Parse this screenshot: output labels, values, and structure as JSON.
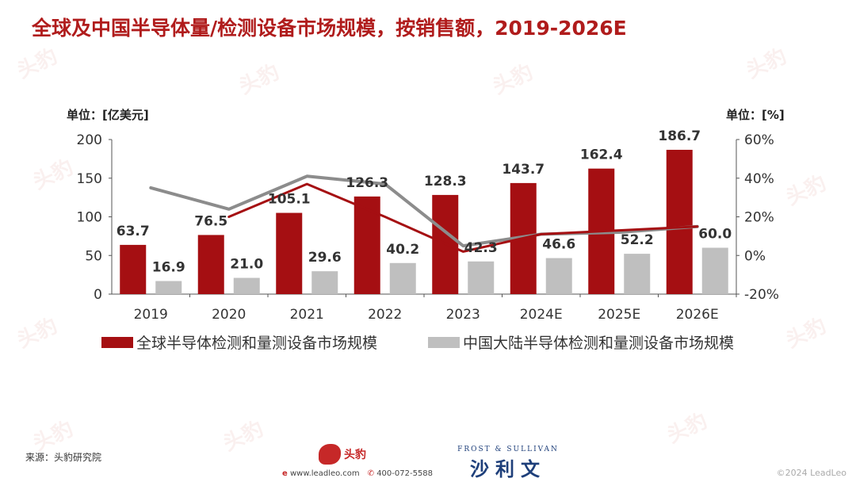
{
  "title": "全球及中国半导体量/检测设备市场规模，按销售额，2019-2026E",
  "units": {
    "left": "单位：[亿美元]",
    "right": "单位：[%]"
  },
  "legend": {
    "global": "全球半导体检测和量测设备市场规模",
    "china": "中国大陆半导体检测和量测设备市场规模"
  },
  "footer": {
    "source": "来源：头豹研究院",
    "leadleo_logo": "头豹",
    "website": "www.leadleo.com",
    "phone": "400-072-5588",
    "fs_small": "FROST & SULLIVAN",
    "fs_big": "沙利文",
    "copyright": "©2024 LeadLeo"
  },
  "watermark_text": "头豹",
  "colors": {
    "title": "#b01c1c",
    "global_bar": "#a50f12",
    "china_bar": "#bfbfbf",
    "global_line": "#a50f12",
    "china_line": "#8c8c8c"
  },
  "chart_data": {
    "type": "bar",
    "categories": [
      "2019",
      "2020",
      "2021",
      "2022",
      "2023",
      "2024E",
      "2025E",
      "2026E"
    ],
    "series": [
      {
        "name": "全球半导体检测和量测设备市场规模",
        "type": "bar",
        "axis": "left",
        "values": [
          63.7,
          76.5,
          105.1,
          126.3,
          128.3,
          143.7,
          162.4,
          186.7
        ]
      },
      {
        "name": "中国大陆半导体检测和量测设备市场规模",
        "type": "bar",
        "axis": "left",
        "values": [
          16.9,
          21.0,
          29.6,
          40.2,
          42.3,
          46.6,
          52.2,
          60.0
        ]
      },
      {
        "type": "line",
        "axis": "right",
        "values": [
          null,
          20,
          37,
          20,
          2,
          11,
          13,
          15
        ]
      },
      {
        "type": "line",
        "axis": "right",
        "values": [
          35,
          24,
          41,
          37,
          5,
          11,
          12,
          15
        ]
      }
    ],
    "bar_labels_global": [
      "63.7",
      "76.5",
      "105.1",
      "126.3",
      "128.3",
      "143.7",
      "162.4",
      "186.7"
    ],
    "bar_labels_china": [
      "16.9",
      "21.0",
      "29.6",
      "40.2",
      "42.3",
      "46.6",
      "52.2",
      "60.0"
    ],
    "left_axis": {
      "ticks": [
        "0",
        "50",
        "100",
        "150",
        "200"
      ],
      "ylim": [
        0,
        200
      ]
    },
    "right_axis": {
      "ticks": [
        "-20%",
        "0%",
        "20%",
        "40%",
        "60%"
      ],
      "ylim": [
        -20,
        60
      ]
    },
    "grid": false,
    "legend_position": "bottom"
  }
}
